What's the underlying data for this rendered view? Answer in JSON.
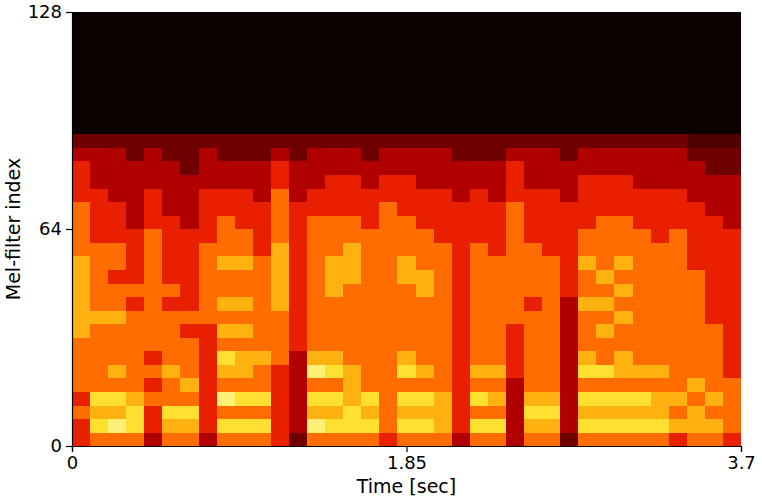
{
  "chart_data": {
    "type": "heatmap",
    "xlabel": "Time [sec]",
    "ylabel": "Mel-filter index",
    "xlim": [
      0,
      3.7
    ],
    "ylim": [
      0,
      128
    ],
    "xticks": [
      0,
      1.85,
      3.7
    ],
    "yticks": [
      0,
      64,
      128
    ],
    "zlim": [
      0,
      10
    ],
    "z": [
      [
        5,
        5,
        6,
        5,
        6,
        6,
        6,
        6,
        7,
        7,
        7,
        7,
        7,
        7,
        6,
        6,
        6,
        6,
        5,
        5,
        5,
        4,
        3,
        0,
        0,
        0,
        0,
        0,
        0,
        0,
        0,
        0
      ],
      [
        6,
        8,
        7,
        8,
        6,
        6,
        6,
        6,
        6,
        7,
        6,
        6,
        6,
        6,
        6,
        5,
        5,
        5,
        5,
        4,
        4,
        4,
        3,
        0,
        0,
        0,
        0,
        0,
        0,
        0,
        0,
        0
      ],
      [
        6,
        9,
        7,
        8,
        6,
        7,
        6,
        6,
        6,
        7,
        6,
        6,
        5,
        6,
        6,
        5,
        5,
        5,
        4,
        4,
        4,
        4,
        3,
        0,
        0,
        0,
        0,
        0,
        0,
        0,
        0,
        0
      ],
      [
        6,
        8,
        8,
        7,
        6,
        6,
        6,
        6,
        6,
        6,
        5,
        6,
        5,
        5,
        5,
        5,
        4,
        4,
        4,
        4,
        4,
        3,
        3,
        0,
        0,
        0,
        0,
        0,
        0,
        0,
        0,
        0
      ],
      [
        4,
        5,
        5,
        6,
        5,
        6,
        5,
        6,
        6,
        6,
        6,
        6,
        6,
        6,
        6,
        6,
        5,
        5,
        5,
        4,
        4,
        4,
        3,
        0,
        0,
        0,
        0,
        0,
        0,
        0,
        0,
        0
      ],
      [
        6,
        7,
        8,
        6,
        6,
        7,
        6,
        6,
        6,
        6,
        5,
        6,
        5,
        5,
        5,
        5,
        5,
        4,
        4,
        4,
        4,
        3,
        3,
        0,
        0,
        0,
        0,
        0,
        0,
        0,
        0,
        0
      ],
      [
        6,
        7,
        8,
        6,
        7,
        6,
        6,
        6,
        5,
        6,
        5,
        5,
        5,
        5,
        5,
        5,
        4,
        4,
        4,
        4,
        3,
        3,
        3,
        0,
        0,
        0,
        0,
        0,
        0,
        0,
        0,
        0
      ],
      [
        4,
        5,
        5,
        5,
        5,
        5,
        5,
        5,
        5,
        6,
        6,
        6,
        6,
        6,
        6,
        5,
        5,
        5,
        5,
        4,
        4,
        4,
        3,
        0,
        0,
        0,
        0,
        0,
        0,
        0,
        0,
        0
      ],
      [
        6,
        8,
        6,
        9,
        6,
        7,
        8,
        6,
        7,
        6,
        7,
        6,
        6,
        7,
        6,
        6,
        6,
        5,
        5,
        4,
        4,
        3,
        3,
        0,
        0,
        0,
        0,
        0,
        0,
        0,
        0,
        0
      ],
      [
        6,
        8,
        6,
        8,
        6,
        7,
        7,
        6,
        7,
        6,
        7,
        6,
        6,
        7,
        6,
        6,
        5,
        5,
        5,
        4,
        4,
        3,
        3,
        0,
        0,
        0,
        0,
        0,
        0,
        0,
        0,
        0
      ],
      [
        6,
        8,
        6,
        8,
        6,
        6,
        7,
        6,
        6,
        6,
        6,
        6,
        6,
        6,
        5,
        5,
        5,
        5,
        4,
        4,
        4,
        3,
        3,
        0,
        0,
        0,
        0,
        0,
        0,
        0,
        0,
        0
      ],
      [
        5,
        5,
        5,
        5,
        5,
        5,
        6,
        6,
        6,
        6,
        7,
        7,
        7,
        7,
        7,
        6,
        6,
        6,
        6,
        5,
        5,
        4,
        3,
        0,
        0,
        0,
        0,
        0,
        0,
        0,
        0,
        0
      ],
      [
        3,
        4,
        4,
        4,
        4,
        4,
        4,
        5,
        5,
        5,
        5,
        5,
        5,
        5,
        5,
        5,
        5,
        5,
        4,
        4,
        4,
        3,
        3,
        0,
        0,
        0,
        0,
        0,
        0,
        0,
        0,
        0
      ],
      [
        6,
        9,
        7,
        8,
        6,
        9,
        7,
        6,
        6,
        6,
        6,
        6,
        6,
        6,
        6,
        6,
        6,
        5,
        5,
        4,
        4,
        4,
        3,
        0,
        0,
        0,
        0,
        0,
        0,
        0,
        0,
        0
      ],
      [
        6,
        8,
        7,
        8,
        6,
        8,
        7,
        6,
        6,
        6,
        6,
        7,
        7,
        7,
        6,
        6,
        6,
        5,
        5,
        5,
        4,
        4,
        3,
        0,
        0,
        0,
        0,
        0,
        0,
        0,
        0,
        0
      ],
      [
        6,
        8,
        8,
        7,
        7,
        7,
        6,
        6,
        6,
        6,
        6,
        6,
        7,
        7,
        7,
        6,
        6,
        5,
        5,
        5,
        4,
        4,
        3,
        0,
        0,
        0,
        0,
        0,
        0,
        0,
        0,
        0
      ],
      [
        6,
        8,
        7,
        8,
        6,
        6,
        6,
        6,
        6,
        6,
        6,
        6,
        6,
        6,
        6,
        6,
        5,
        5,
        5,
        4,
        4,
        3,
        3,
        0,
        0,
        0,
        0,
        0,
        0,
        0,
        0,
        0
      ],
      [
        5,
        6,
        6,
        6,
        6,
        6,
        6,
        6,
        6,
        6,
        6,
        6,
        6,
        6,
        6,
        6,
        6,
        6,
        5,
        5,
        4,
        4,
        3,
        0,
        0,
        0,
        0,
        0,
        0,
        0,
        0,
        0
      ],
      [
        6,
        8,
        7,
        8,
        6,
        8,
        7,
        6,
        6,
        6,
        6,
        6,
        7,
        7,
        6,
        6,
        6,
        5,
        5,
        5,
        4,
        4,
        3,
        0,
        0,
        0,
        0,
        0,
        0,
        0,
        0,
        0
      ],
      [
        6,
        8,
        7,
        8,
        6,
        7,
        6,
        6,
        6,
        6,
        6,
        7,
        7,
        6,
        6,
        6,
        5,
        5,
        5,
        4,
        4,
        4,
        3,
        0,
        0,
        0,
        0,
        0,
        0,
        0,
        0,
        0
      ],
      [
        6,
        7,
        7,
        7,
        6,
        6,
        6,
        6,
        6,
        6,
        6,
        6,
        6,
        6,
        6,
        5,
        5,
        5,
        5,
        4,
        4,
        4,
        3,
        0,
        0,
        0,
        0,
        0,
        0,
        0,
        0,
        0
      ],
      [
        4,
        5,
        5,
        5,
        5,
        5,
        5,
        5,
        5,
        5,
        5,
        5,
        5,
        5,
        5,
        5,
        5,
        5,
        4,
        4,
        4,
        3,
        3,
        0,
        0,
        0,
        0,
        0,
        0,
        0,
        0,
        0
      ],
      [
        6,
        8,
        6,
        8,
        6,
        7,
        6,
        6,
        6,
        6,
        6,
        6,
        6,
        6,
        6,
        5,
        5,
        5,
        5,
        4,
        4,
        3,
        3,
        0,
        0,
        0,
        0,
        0,
        0,
        0,
        0,
        0
      ],
      [
        6,
        8,
        6,
        7,
        6,
        7,
        6,
        6,
        6,
        6,
        6,
        6,
        6,
        6,
        5,
        5,
        5,
        5,
        4,
        4,
        4,
        3,
        3,
        0,
        0,
        0,
        0,
        0,
        0,
        0,
        0,
        0
      ],
      [
        4,
        4,
        4,
        4,
        4,
        5,
        5,
        5,
        5,
        6,
        6,
        6,
        6,
        6,
        6,
        6,
        6,
        6,
        5,
        5,
        5,
        4,
        3,
        0,
        0,
        0,
        0,
        0,
        0,
        0,
        0,
        0
      ],
      [
        6,
        7,
        8,
        7,
        6,
        6,
        6,
        6,
        6,
        6,
        5,
        6,
        6,
        6,
        6,
        5,
        5,
        5,
        5,
        4,
        4,
        4,
        3,
        0,
        0,
        0,
        0,
        0,
        0,
        0,
        0,
        0
      ],
      [
        6,
        7,
        8,
        7,
        6,
        6,
        6,
        6,
        6,
        6,
        6,
        6,
        6,
        6,
        5,
        5,
        5,
        5,
        5,
        4,
        4,
        4,
        3,
        0,
        0,
        0,
        0,
        0,
        0,
        0,
        0,
        0
      ],
      [
        3,
        4,
        4,
        4,
        4,
        4,
        4,
        4,
        4,
        4,
        4,
        5,
        5,
        5,
        5,
        5,
        5,
        5,
        4,
        4,
        4,
        3,
        3,
        0,
        0,
        0,
        0,
        0,
        0,
        0,
        0,
        0
      ],
      [
        6,
        8,
        7,
        8,
        6,
        8,
        7,
        6,
        6,
        6,
        7,
        6,
        6,
        7,
        6,
        6,
        5,
        5,
        5,
        5,
        4,
        4,
        3,
        0,
        0,
        0,
        0,
        0,
        0,
        0,
        0,
        0
      ],
      [
        6,
        8,
        7,
        8,
        6,
        8,
        6,
        6,
        7,
        6,
        7,
        6,
        7,
        6,
        6,
        6,
        6,
        5,
        5,
        5,
        4,
        4,
        3,
        0,
        0,
        0,
        0,
        0,
        0,
        0,
        0,
        0
      ],
      [
        6,
        8,
        7,
        8,
        6,
        7,
        7,
        6,
        6,
        7,
        6,
        7,
        6,
        7,
        6,
        6,
        6,
        5,
        5,
        5,
        4,
        4,
        3,
        0,
        0,
        0,
        0,
        0,
        0,
        0,
        0,
        0
      ],
      [
        6,
        8,
        7,
        8,
        6,
        7,
        6,
        6,
        6,
        6,
        6,
        6,
        6,
        6,
        6,
        6,
        5,
        5,
        5,
        4,
        4,
        4,
        3,
        0,
        0,
        0,
        0,
        0,
        0,
        0,
        0,
        0
      ],
      [
        6,
        8,
        7,
        7,
        6,
        7,
        6,
        6,
        6,
        6,
        6,
        6,
        6,
        6,
        6,
        5,
        5,
        5,
        5,
        4,
        4,
        4,
        3,
        0,
        0,
        0,
        0,
        0,
        0,
        0,
        0,
        0
      ],
      [
        5,
        7,
        6,
        7,
        6,
        6,
        6,
        6,
        6,
        6,
        6,
        6,
        6,
        6,
        6,
        6,
        5,
        5,
        5,
        4,
        4,
        4,
        3,
        0,
        0,
        0,
        0,
        0,
        0,
        0,
        0,
        0
      ],
      [
        6,
        7,
        7,
        6,
        7,
        6,
        6,
        6,
        6,
        6,
        6,
        6,
        6,
        5,
        5,
        5,
        5,
        5,
        4,
        4,
        4,
        3,
        2,
        0,
        0,
        0,
        0,
        0,
        0,
        0,
        0,
        0
      ],
      [
        6,
        7,
        6,
        7,
        6,
        6,
        6,
        6,
        6,
        5,
        5,
        5,
        5,
        5,
        5,
        5,
        5,
        4,
        4,
        4,
        3,
        3,
        2,
        0,
        0,
        0,
        0,
        0,
        0,
        0,
        0,
        0
      ],
      [
        5,
        6,
        6,
        6,
        6,
        5,
        5,
        5,
        5,
        5,
        5,
        5,
        5,
        5,
        5,
        5,
        4,
        4,
        4,
        4,
        3,
        3,
        2,
        0,
        0,
        0,
        0,
        0,
        0,
        0,
        0,
        0
      ]
    ]
  }
}
